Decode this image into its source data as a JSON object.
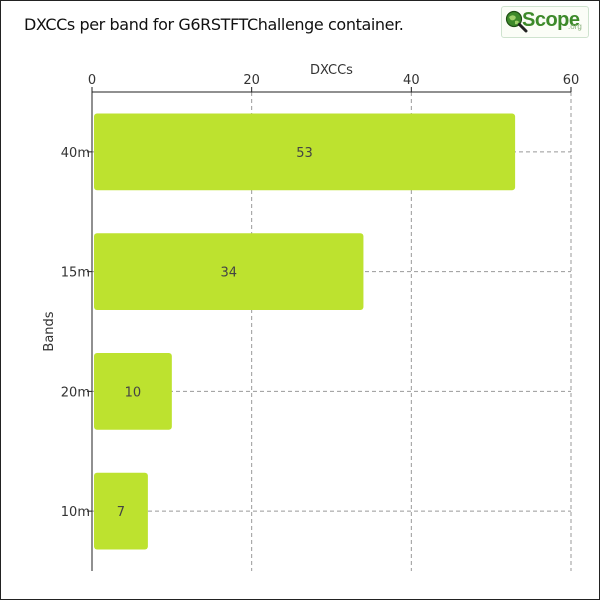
{
  "title": "DXCCs per band for G6RSTFTChallenge container.",
  "logo": {
    "icon": "magnifier-globe-icon",
    "word": "Scope",
    "tld": ".org",
    "color": "#3d8a2a"
  },
  "chart_data": {
    "type": "bar",
    "orientation": "horizontal",
    "title": "DXCCs per band for G6RSTFTChallenge container.",
    "xlabel": "DXCCs",
    "ylabel": "Bands",
    "categories": [
      "40m",
      "15m",
      "20m",
      "10m"
    ],
    "values": [
      53,
      34,
      10,
      7
    ],
    "xlim": [
      0,
      60
    ],
    "xticks": [
      "0",
      "20",
      "40",
      "60"
    ],
    "x_axis_position": "top",
    "grid": true,
    "bar_color": "#bde22f",
    "data_labels": [
      "53",
      "34",
      "10",
      "7"
    ]
  }
}
